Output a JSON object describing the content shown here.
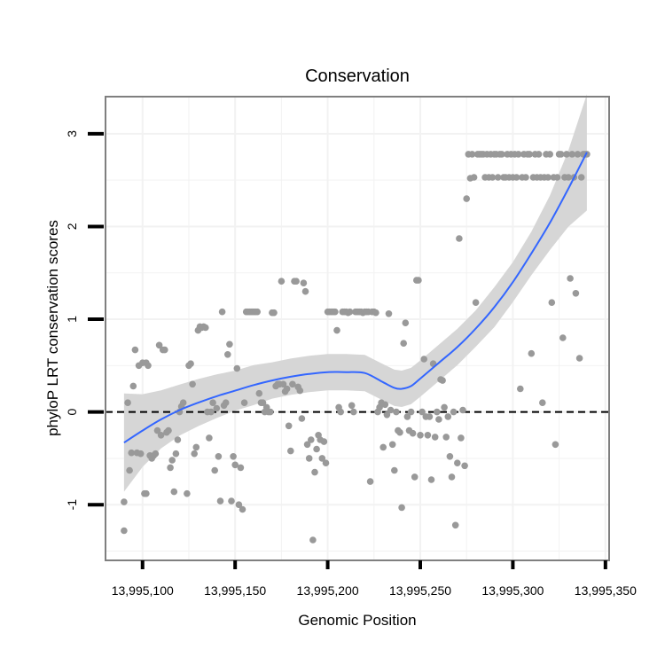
{
  "chart_data": {
    "type": "scatter",
    "title": "Conservation",
    "xlabel": "Genomic Position",
    "ylabel": "phyloP LRT conservation scores",
    "xlim": [
      13995080,
      13995352
    ],
    "ylim": [
      -1.6,
      3.4
    ],
    "x_ticks": [
      13995100,
      13995150,
      13995200,
      13995250,
      13995300,
      13995350
    ],
    "x_tick_labels": [
      "13,995,100",
      "13,995,150",
      "13,995,200",
      "13,995,250",
      "13,995,300",
      "13,995,350"
    ],
    "y_ticks": [
      -1,
      0,
      1,
      2,
      3
    ],
    "y_tick_labels": [
      "-1",
      "0",
      "1",
      "2",
      "3"
    ],
    "reference_line": {
      "y": 0,
      "style": "dashed"
    },
    "colors": {
      "points": "#999999",
      "smooth": "#3366ff",
      "band": "#d4d4d4",
      "frame": "#7f7f7f",
      "grid": "#f2f2f2"
    },
    "points": [
      [
        13995090,
        -0.97
      ],
      [
        13995090,
        -1.28
      ],
      [
        13995092,
        0.1
      ],
      [
        13995093,
        -0.63
      ],
      [
        13995094,
        -0.44
      ],
      [
        13995095,
        0.28
      ],
      [
        13995096,
        0.67
      ],
      [
        13995097,
        -0.44
      ],
      [
        13995098,
        0.5
      ],
      [
        13995099,
        -0.45
      ],
      [
        13995100,
        0.53
      ],
      [
        13995101,
        -0.88
      ],
      [
        13995102,
        -0.88
      ],
      [
        13995102,
        0.53
      ],
      [
        13995103,
        0.5
      ],
      [
        13995104,
        -0.47
      ],
      [
        13995105,
        -0.5
      ],
      [
        13995106,
        -0.47
      ],
      [
        13995107,
        -0.45
      ],
      [
        13995108,
        -0.2
      ],
      [
        13995109,
        0.72
      ],
      [
        13995110,
        -0.25
      ],
      [
        13995111,
        0.67
      ],
      [
        13995112,
        0.67
      ],
      [
        13995113,
        -0.22
      ],
      [
        13995114,
        -0.2
      ],
      [
        13995115,
        -0.6
      ],
      [
        13995116,
        -0.52
      ],
      [
        13995117,
        -0.86
      ],
      [
        13995118,
        -0.45
      ],
      [
        13995119,
        -0.3
      ],
      [
        13995120,
        0.0
      ],
      [
        13995121,
        0.06
      ],
      [
        13995122,
        0.1
      ],
      [
        13995124,
        -0.88
      ],
      [
        13995125,
        0.5
      ],
      [
        13995126,
        0.52
      ],
      [
        13995127,
        0.3
      ],
      [
        13995128,
        -0.45
      ],
      [
        13995129,
        -0.38
      ],
      [
        13995130,
        0.88
      ],
      [
        13995131,
        0.92
      ],
      [
        13995132,
        0.91
      ],
      [
        13995133,
        0.92
      ],
      [
        13995134,
        0.91
      ],
      [
        13995135,
        0.0
      ],
      [
        13995136,
        -0.28
      ],
      [
        13995137,
        0.0
      ],
      [
        13995138,
        0.1
      ],
      [
        13995139,
        -0.63
      ],
      [
        13995140,
        0.04
      ],
      [
        13995141,
        -0.48
      ],
      [
        13995142,
        -0.96
      ],
      [
        13995143,
        1.08
      ],
      [
        13995144,
        0.07
      ],
      [
        13995145,
        0.1
      ],
      [
        13995146,
        0.62
      ],
      [
        13995147,
        0.73
      ],
      [
        13995148,
        -0.96
      ],
      [
        13995149,
        -0.48
      ],
      [
        13995150,
        -0.57
      ],
      [
        13995151,
        0.47
      ],
      [
        13995152,
        -1.0
      ],
      [
        13995153,
        -0.6
      ],
      [
        13995154,
        -1.05
      ],
      [
        13995155,
        0.1
      ],
      [
        13995156,
        1.08
      ],
      [
        13995157,
        1.08
      ],
      [
        13995158,
        1.08
      ],
      [
        13995159,
        1.08
      ],
      [
        13995160,
        1.08
      ],
      [
        13995161,
        1.08
      ],
      [
        13995162,
        1.08
      ],
      [
        13995163,
        0.2
      ],
      [
        13995164,
        0.1
      ],
      [
        13995165,
        0.1
      ],
      [
        13995166,
        0.0
      ],
      [
        13995167,
        0.05
      ],
      [
        13995168,
        0.0
      ],
      [
        13995169,
        0.0
      ],
      [
        13995170,
        1.07
      ],
      [
        13995171,
        1.07
      ],
      [
        13995172,
        0.28
      ],
      [
        13995173,
        0.3
      ],
      [
        13995174,
        0.3
      ],
      [
        13995175,
        1.41
      ],
      [
        13995176,
        0.3
      ],
      [
        13995177,
        0.22
      ],
      [
        13995178,
        0.25
      ],
      [
        13995179,
        -0.15
      ],
      [
        13995180,
        -0.42
      ],
      [
        13995181,
        0.3
      ],
      [
        13995182,
        1.41
      ],
      [
        13995183,
        1.41
      ],
      [
        13995184,
        0.27
      ],
      [
        13995185,
        0.23
      ],
      [
        13995186,
        -0.07
      ],
      [
        13995187,
        1.39
      ],
      [
        13995188,
        1.3
      ],
      [
        13995189,
        -0.35
      ],
      [
        13995190,
        -0.5
      ],
      [
        13995191,
        -0.3
      ],
      [
        13995192,
        -1.38
      ],
      [
        13995193,
        -0.65
      ],
      [
        13995194,
        -0.4
      ],
      [
        13995195,
        -0.25
      ],
      [
        13995196,
        -0.3
      ],
      [
        13995197,
        -0.5
      ],
      [
        13995198,
        -0.32
      ],
      [
        13995199,
        -0.55
      ],
      [
        13995200,
        1.08
      ],
      [
        13995201,
        1.08
      ],
      [
        13995202,
        1.08
      ],
      [
        13995203,
        1.08
      ],
      [
        13995204,
        1.08
      ],
      [
        13995205,
        0.88
      ],
      [
        13995206,
        0.05
      ],
      [
        13995207,
        0.0
      ],
      [
        13995208,
        1.08
      ],
      [
        13995209,
        1.08
      ],
      [
        13995210,
        1.08
      ],
      [
        13995211,
        1.07
      ],
      [
        13995212,
        1.08
      ],
      [
        13995213,
        0.07
      ],
      [
        13995214,
        0.0
      ],
      [
        13995215,
        1.08
      ],
      [
        13995216,
        1.08
      ],
      [
        13995217,
        1.08
      ],
      [
        13995218,
        1.08
      ],
      [
        13995219,
        1.07
      ],
      [
        13995220,
        1.08
      ],
      [
        13995221,
        1.08
      ],
      [
        13995222,
        1.08
      ],
      [
        13995223,
        -0.75
      ],
      [
        13995224,
        1.08
      ],
      [
        13995225,
        1.08
      ],
      [
        13995226,
        1.07
      ],
      [
        13995227,
        0.0
      ],
      [
        13995228,
        0.05
      ],
      [
        13995229,
        0.1
      ],
      [
        13995230,
        -0.38
      ],
      [
        13995231,
        0.08
      ],
      [
        13995232,
        -0.03
      ],
      [
        13995233,
        1.06
      ],
      [
        13995234,
        0.02
      ],
      [
        13995235,
        -0.35
      ],
      [
        13995236,
        -0.63
      ],
      [
        13995237,
        0.0
      ],
      [
        13995238,
        -0.2
      ],
      [
        13995239,
        -0.22
      ],
      [
        13995240,
        -1.03
      ],
      [
        13995241,
        0.74
      ],
      [
        13995242,
        0.96
      ],
      [
        13995243,
        -0.05
      ],
      [
        13995244,
        -0.2
      ],
      [
        13995245,
        0.0
      ],
      [
        13995246,
        -0.23
      ],
      [
        13995247,
        -0.7
      ],
      [
        13995248,
        1.42
      ],
      [
        13995249,
        1.42
      ],
      [
        13995250,
        -0.25
      ],
      [
        13995251,
        0.0
      ],
      [
        13995252,
        0.57
      ],
      [
        13995253,
        -0.05
      ],
      [
        13995254,
        -0.25
      ],
      [
        13995255,
        -0.05
      ],
      [
        13995256,
        -0.73
      ],
      [
        13995257,
        0.52
      ],
      [
        13995258,
        -0.27
      ],
      [
        13995259,
        0.0
      ],
      [
        13995260,
        -0.08
      ],
      [
        13995261,
        0.35
      ],
      [
        13995262,
        0.34
      ],
      [
        13995263,
        0.05
      ],
      [
        13995264,
        -0.27
      ],
      [
        13995265,
        -0.05
      ],
      [
        13995266,
        -0.48
      ],
      [
        13995267,
        -0.7
      ],
      [
        13995268,
        0.0
      ],
      [
        13995269,
        -1.22
      ],
      [
        13995270,
        -0.55
      ],
      [
        13995271,
        1.87
      ],
      [
        13995272,
        -0.28
      ],
      [
        13995273,
        0.02
      ],
      [
        13995274,
        -0.58
      ],
      [
        13995275,
        2.3
      ],
      [
        13995276,
        2.78
      ],
      [
        13995277,
        2.52
      ],
      [
        13995278,
        2.78
      ],
      [
        13995279,
        2.53
      ],
      [
        13995280,
        1.18
      ],
      [
        13995281,
        2.78
      ],
      [
        13995282,
        2.78
      ],
      [
        13995283,
        2.78
      ],
      [
        13995284,
        2.78
      ],
      [
        13995285,
        2.53
      ],
      [
        13995286,
        2.78
      ],
      [
        13995287,
        2.53
      ],
      [
        13995288,
        2.78
      ],
      [
        13995289,
        2.53
      ],
      [
        13995290,
        2.78
      ],
      [
        13995291,
        2.78
      ],
      [
        13995292,
        2.53
      ],
      [
        13995293,
        2.78
      ],
      [
        13995294,
        2.78
      ],
      [
        13995295,
        2.53
      ],
      [
        13995296,
        2.53
      ],
      [
        13995297,
        2.78
      ],
      [
        13995298,
        2.53
      ],
      [
        13995299,
        2.78
      ],
      [
        13995300,
        2.53
      ],
      [
        13995301,
        2.78
      ],
      [
        13995302,
        2.53
      ],
      [
        13995303,
        2.78
      ],
      [
        13995304,
        0.25
      ],
      [
        13995305,
        2.53
      ],
      [
        13995306,
        2.78
      ],
      [
        13995307,
        2.53
      ],
      [
        13995308,
        2.78
      ],
      [
        13995309,
        2.78
      ],
      [
        13995310,
        0.63
      ],
      [
        13995311,
        2.53
      ],
      [
        13995312,
        2.78
      ],
      [
        13995313,
        2.53
      ],
      [
        13995314,
        2.78
      ],
      [
        13995315,
        2.53
      ],
      [
        13995316,
        0.1
      ],
      [
        13995317,
        2.53
      ],
      [
        13995318,
        2.78
      ],
      [
        13995319,
        2.53
      ],
      [
        13995320,
        2.78
      ],
      [
        13995321,
        1.18
      ],
      [
        13995322,
        2.53
      ],
      [
        13995323,
        -0.35
      ],
      [
        13995324,
        2.53
      ],
      [
        13995325,
        2.78
      ],
      [
        13995326,
        2.78
      ],
      [
        13995327,
        0.8
      ],
      [
        13995328,
        2.53
      ],
      [
        13995329,
        2.78
      ],
      [
        13995330,
        2.53
      ],
      [
        13995331,
        1.44
      ],
      [
        13995332,
        2.78
      ],
      [
        13995333,
        2.53
      ],
      [
        13995334,
        1.28
      ],
      [
        13995335,
        2.78
      ],
      [
        13995336,
        0.58
      ],
      [
        13995337,
        2.53
      ],
      [
        13995338,
        2.78
      ],
      [
        13995339,
        2.78
      ],
      [
        13995340,
        2.78
      ]
    ],
    "smooth": {
      "x": [
        13995090,
        13995100,
        13995110,
        13995120,
        13995130,
        13995140,
        13995150,
        13995160,
        13995170,
        13995180,
        13995190,
        13995200,
        13995210,
        13995220,
        13995230,
        13995236,
        13995240,
        13995245,
        13995250,
        13995260,
        13995270,
        13995280,
        13995290,
        13995300,
        13995310,
        13995320,
        13995330,
        13995340
      ],
      "y": [
        -0.33,
        -0.2,
        -0.08,
        0.02,
        0.1,
        0.17,
        0.23,
        0.29,
        0.34,
        0.38,
        0.41,
        0.43,
        0.43,
        0.42,
        0.32,
        0.26,
        0.25,
        0.28,
        0.36,
        0.53,
        0.7,
        0.9,
        1.13,
        1.4,
        1.71,
        2.04,
        2.41,
        2.8
      ],
      "se": [
        0.27,
        0.2,
        0.16,
        0.14,
        0.13,
        0.12,
        0.11,
        0.11,
        0.1,
        0.1,
        0.1,
        0.1,
        0.1,
        0.1,
        0.1,
        0.1,
        0.1,
        0.1,
        0.1,
        0.1,
        0.1,
        0.1,
        0.11,
        0.11,
        0.12,
        0.15,
        0.21,
        0.32
      ]
    }
  }
}
